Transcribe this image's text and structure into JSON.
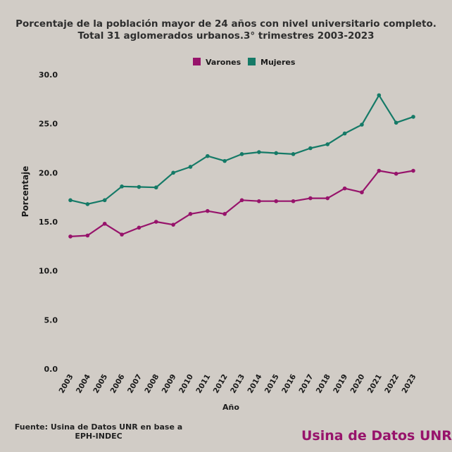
{
  "chart_data": {
    "type": "line",
    "title": "Porcentaje de la población mayor de 24 años con nivel universitario completo. Total 31 aglomerados urbanos.3° trimestres 2003-2023",
    "xlabel": "Año",
    "ylabel": "Porcentaje",
    "ylim": [
      0,
      30
    ],
    "yticks": [
      "0.0",
      "5.0",
      "10.0",
      "15.0",
      "20.0",
      "25.0",
      "30.0"
    ],
    "grid": false,
    "legend_position": "top-center",
    "categories": [
      "2003",
      "2004",
      "2005",
      "2006",
      "2007",
      "2008",
      "2009",
      "2010",
      "2011",
      "2012",
      "2013",
      "2014",
      "2015",
      "2016",
      "2017",
      "2018",
      "2019",
      "2020",
      "2021",
      "2022",
      "2023"
    ],
    "series": [
      {
        "name": "Varones",
        "color": "#97136b",
        "values": [
          13.5,
          13.6,
          14.8,
          13.7,
          14.4,
          15.0,
          14.7,
          15.8,
          16.1,
          15.8,
          17.2,
          17.1,
          17.1,
          17.1,
          17.4,
          17.4,
          18.4,
          18.0,
          20.2,
          19.9,
          20.2
        ]
      },
      {
        "name": "Mujeres",
        "color": "#157a67",
        "values": [
          17.2,
          16.8,
          17.2,
          18.6,
          18.55,
          18.5,
          20.0,
          20.6,
          21.7,
          21.2,
          21.9,
          22.1,
          22.0,
          21.9,
          22.5,
          22.9,
          24.0,
          24.9,
          27.9,
          25.1,
          25.7
        ]
      }
    ]
  },
  "footer": {
    "source_line1": "Fuente: Usina de Datos UNR en base a",
    "source_line2": "EPH-INDEC",
    "brand": "Usina de Datos UNR"
  }
}
